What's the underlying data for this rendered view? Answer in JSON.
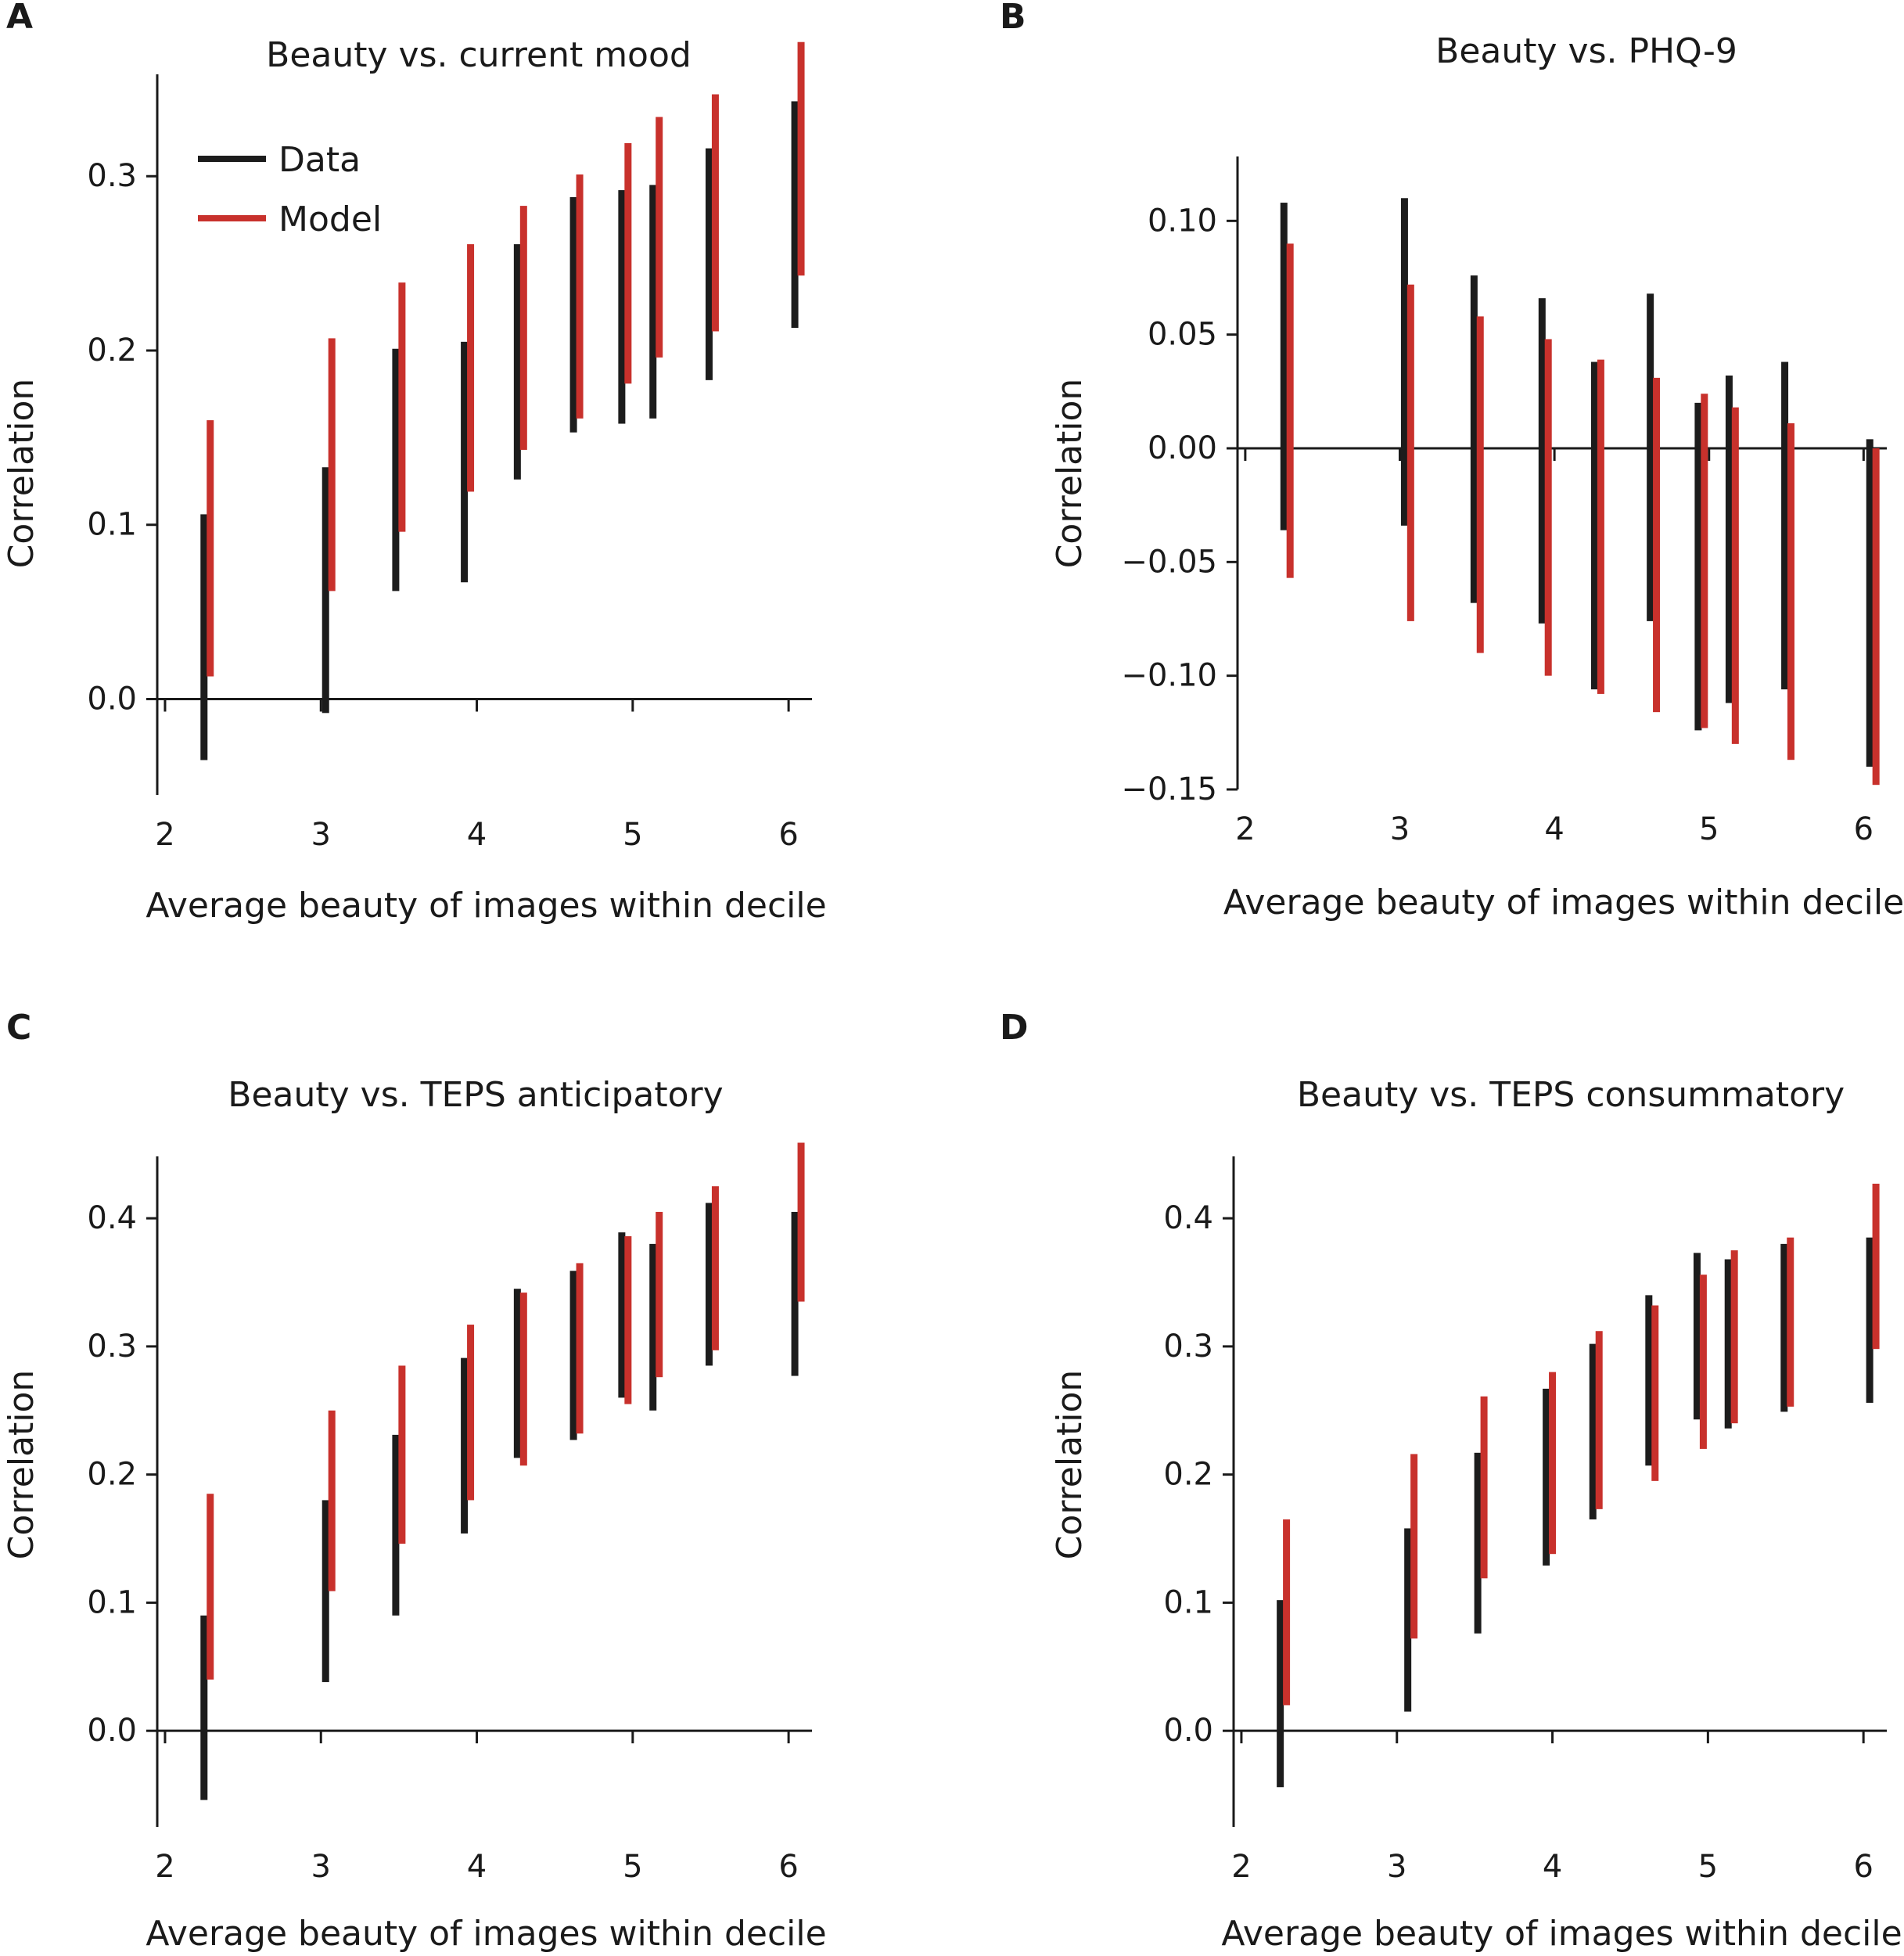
{
  "colors": {
    "data": "#1c1c1c",
    "model": "#c8312c",
    "axis": "#1a1a1a"
  },
  "chart_data": [
    {
      "panel": "A",
      "type": "bar",
      "subtype": "interval",
      "title": "Beauty vs. current mood",
      "xlabel": "Average beauty of images within decile",
      "ylabel": "Correlation",
      "xlim": [
        1.95,
        6.15
      ],
      "ylim": [
        -0.055,
        0.345
      ],
      "xticks": [
        2,
        3,
        4,
        5,
        6
      ],
      "yticks": [
        0.0,
        0.1,
        0.2,
        0.3
      ],
      "ytick_labels": [
        "0.0",
        "0.1",
        "0.2",
        "0.3"
      ],
      "legend": {
        "position": "top-left",
        "entries": [
          "Data",
          "Model"
        ]
      },
      "series": [
        {
          "name": "Data",
          "x": [
            2.25,
            3.03,
            3.48,
            3.92,
            4.26,
            4.62,
            4.93,
            5.13,
            5.49,
            6.04
          ],
          "low": [
            -0.035,
            -0.008,
            0.062,
            0.067,
            0.126,
            0.153,
            0.158,
            0.161,
            0.183,
            0.213
          ],
          "high": [
            0.106,
            0.133,
            0.201,
            0.205,
            0.261,
            0.288,
            0.292,
            0.295,
            0.316,
            0.343
          ]
        },
        {
          "name": "Model",
          "x": [
            2.29,
            3.07,
            3.52,
            3.96,
            4.3,
            4.66,
            4.97,
            5.17,
            5.53,
            6.08
          ],
          "low": [
            0.013,
            0.062,
            0.096,
            0.119,
            0.143,
            0.161,
            0.181,
            0.196,
            0.211,
            0.243
          ],
          "high": [
            0.16,
            0.207,
            0.239,
            0.261,
            0.283,
            0.301,
            0.319,
            0.334,
            0.347,
            0.377
          ]
        }
      ]
    },
    {
      "panel": "B",
      "type": "bar",
      "subtype": "interval",
      "title": "Beauty vs. PHQ-9",
      "xlabel": "Average beauty of images within decile",
      "ylabel": "Correlation",
      "xlim": [
        1.95,
        6.15
      ],
      "ylim": [
        -0.15,
        0.118
      ],
      "xticks": [
        2,
        3,
        4,
        5,
        6
      ],
      "yticks": [
        -0.15,
        -0.1,
        -0.05,
        0.0,
        0.05,
        0.1
      ],
      "ytick_labels": [
        "−0.15",
        "−0.10",
        "−0.05",
        "0.00",
        "0.05",
        "0.10"
      ],
      "series": [
        {
          "name": "Data",
          "x": [
            2.25,
            3.03,
            3.48,
            3.92,
            4.26,
            4.62,
            4.93,
            5.13,
            5.49,
            6.04
          ],
          "low": [
            -0.036,
            -0.034,
            -0.068,
            -0.077,
            -0.106,
            -0.076,
            -0.124,
            -0.112,
            -0.106,
            -0.14
          ],
          "high": [
            0.108,
            0.11,
            0.076,
            0.066,
            0.038,
            0.068,
            0.02,
            0.032,
            0.038,
            0.004
          ]
        },
        {
          "name": "Model",
          "x": [
            2.29,
            3.07,
            3.52,
            3.96,
            4.3,
            4.66,
            4.97,
            5.17,
            5.53,
            6.08
          ],
          "low": [
            -0.057,
            -0.076,
            -0.09,
            -0.1,
            -0.108,
            -0.116,
            -0.123,
            -0.13,
            -0.137,
            -0.148
          ],
          "high": [
            0.09,
            0.072,
            0.058,
            0.048,
            0.039,
            0.031,
            0.024,
            0.018,
            0.011,
            0.0
          ]
        }
      ]
    },
    {
      "panel": "C",
      "type": "bar",
      "subtype": "interval",
      "title": "Beauty vs. TEPS anticipatory",
      "xlabel": "Average beauty of images within decile",
      "ylabel": "Correlation",
      "xlim": [
        1.95,
        6.15
      ],
      "ylim": [
        -0.075,
        0.43
      ],
      "xticks": [
        2,
        3,
        4,
        5,
        6
      ],
      "yticks": [
        0.0,
        0.1,
        0.2,
        0.3,
        0.4
      ],
      "ytick_labels": [
        "0.0",
        "0.1",
        "0.2",
        "0.3",
        "0.4"
      ],
      "series": [
        {
          "name": "Data",
          "x": [
            2.25,
            3.03,
            3.48,
            3.92,
            4.26,
            4.62,
            4.93,
            5.13,
            5.49,
            6.04
          ],
          "low": [
            -0.054,
            0.038,
            0.09,
            0.154,
            0.213,
            0.227,
            0.26,
            0.25,
            0.285,
            0.277
          ],
          "high": [
            0.09,
            0.18,
            0.231,
            0.291,
            0.345,
            0.359,
            0.389,
            0.38,
            0.412,
            0.405
          ]
        },
        {
          "name": "Model",
          "x": [
            2.29,
            3.07,
            3.52,
            3.96,
            4.3,
            4.66,
            4.97,
            5.17,
            5.53,
            6.08
          ],
          "low": [
            0.04,
            0.109,
            0.146,
            0.18,
            0.207,
            0.232,
            0.255,
            0.276,
            0.297,
            0.335
          ],
          "high": [
            0.185,
            0.25,
            0.285,
            0.317,
            0.342,
            0.365,
            0.386,
            0.405,
            0.425,
            0.459
          ]
        }
      ]
    },
    {
      "panel": "D",
      "type": "bar",
      "subtype": "interval",
      "title": "Beauty vs. TEPS consummatory",
      "xlabel": "Average beauty of images within decile",
      "ylabel": "Correlation",
      "xlim": [
        1.95,
        6.15
      ],
      "ylim": [
        -0.075,
        0.43
      ],
      "xticks": [
        2,
        3,
        4,
        5,
        6
      ],
      "yticks": [
        0.0,
        0.1,
        0.2,
        0.3,
        0.4
      ],
      "ytick_labels": [
        "0.0",
        "0.1",
        "0.2",
        "0.3",
        "0.4"
      ],
      "series": [
        {
          "name": "Data",
          "x": [
            2.25,
            3.07,
            3.52,
            3.96,
            4.26,
            4.62,
            4.93,
            5.13,
            5.49,
            6.04
          ],
          "low": [
            -0.044,
            0.015,
            0.076,
            0.129,
            0.165,
            0.207,
            0.243,
            0.236,
            0.249,
            0.256
          ],
          "high": [
            0.102,
            0.158,
            0.217,
            0.267,
            0.302,
            0.34,
            0.373,
            0.368,
            0.38,
            0.385
          ]
        },
        {
          "name": "Model",
          "x": [
            2.29,
            3.11,
            3.56,
            4.0,
            4.3,
            4.66,
            4.97,
            5.17,
            5.53,
            6.08
          ],
          "low": [
            0.02,
            0.072,
            0.119,
            0.138,
            0.173,
            0.195,
            0.22,
            0.24,
            0.253,
            0.298
          ],
          "high": [
            0.165,
            0.216,
            0.261,
            0.28,
            0.312,
            0.332,
            0.356,
            0.375,
            0.385,
            0.427
          ]
        }
      ]
    }
  ]
}
